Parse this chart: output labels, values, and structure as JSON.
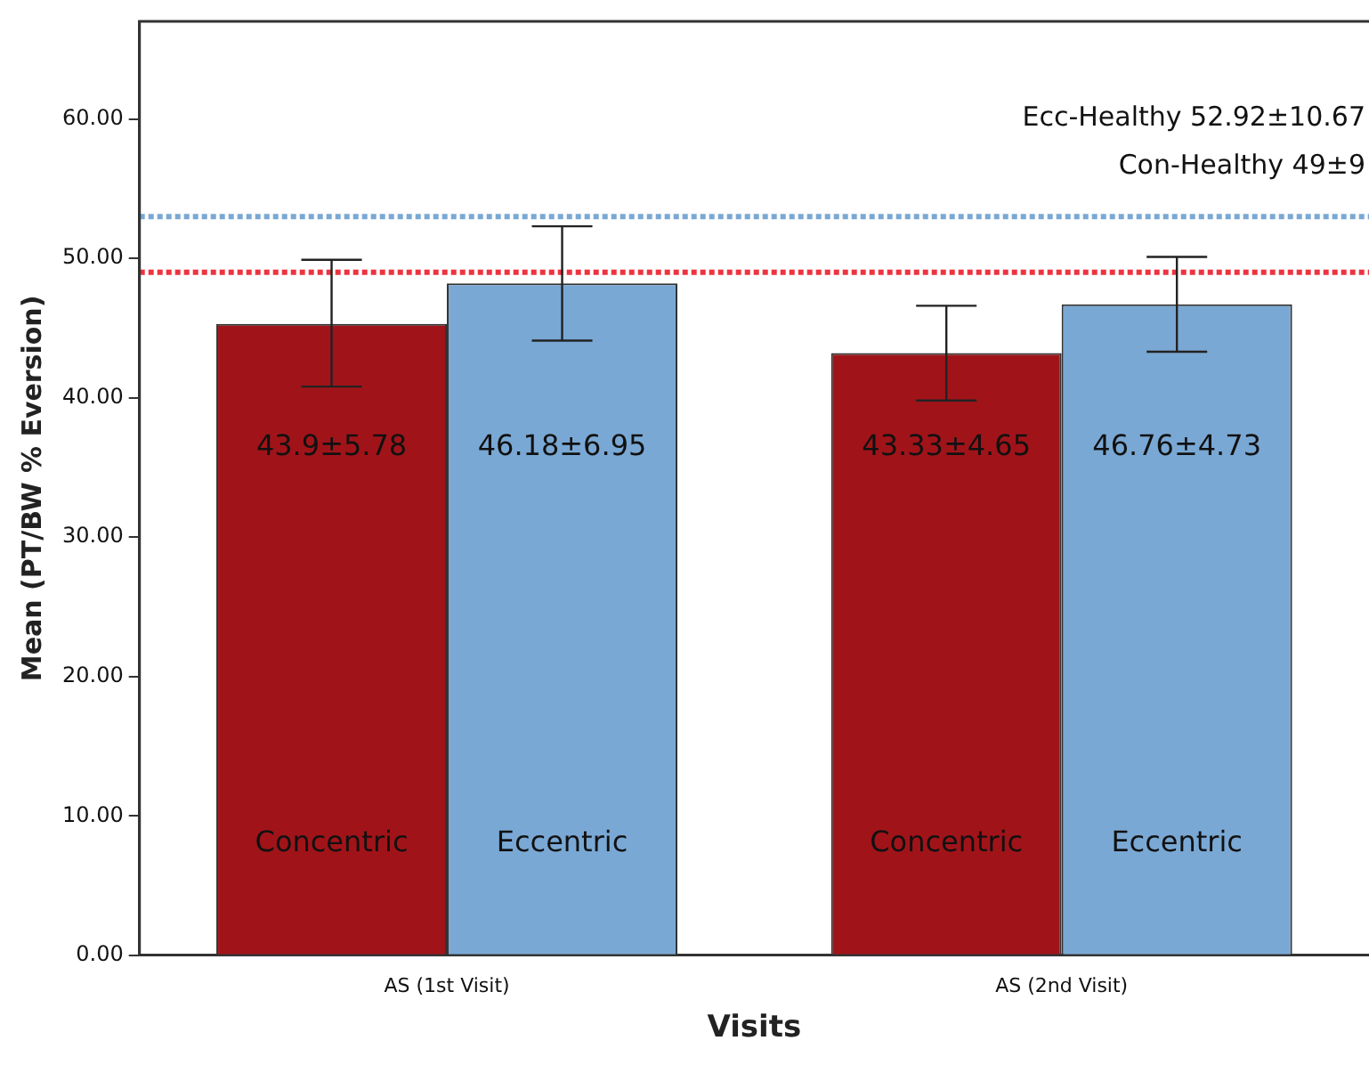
{
  "chart_data": {
    "type": "bar",
    "xlabel": "Visits",
    "ylabel": "Mean (PT/BW % Eversion)",
    "categories": [
      "AS (1st Visit)",
      "AS (2nd Visit)"
    ],
    "series": [
      {
        "name": "Concentric",
        "color": "#a01419",
        "values": [
          45.3,
          43.2
        ],
        "errors": [
          [
            40.8,
            49.9
          ],
          [
            39.8,
            46.6
          ]
        ]
      },
      {
        "name": "Eccentric",
        "color": "#7aa8d4",
        "values": [
          48.2,
          46.7
        ],
        "errors": [
          [
            44.1,
            52.3
          ],
          [
            43.3,
            50.1
          ]
        ]
      }
    ],
    "annotations": [
      "43.9±5.78",
      "43.33±4.65",
      "46.18±6.95",
      "46.76±4.73",
      "Ecc-Healthy 52.92±10.67",
      "Con-Healthy 49±9"
    ],
    "ylim": [
      0,
      67
    ],
    "yticks": [
      {
        "value": 0,
        "label": "0.00"
      },
      {
        "value": 10,
        "label": "10.00"
      },
      {
        "value": 20,
        "label": "20.00"
      },
      {
        "value": 30,
        "label": "30.00"
      },
      {
        "value": 40,
        "label": "40.00"
      },
      {
        "value": 50,
        "label": "50.00"
      },
      {
        "value": 60,
        "label": "60.00"
      }
    ],
    "ref_lines": [
      {
        "axis": "y",
        "value": 53,
        "color": "#7aa8d4",
        "line_style": "dotted"
      },
      {
        "axis": "y",
        "value": 49,
        "color": "#ee3340",
        "line_style": "dotted"
      }
    ],
    "grid": false,
    "legend": false
  }
}
